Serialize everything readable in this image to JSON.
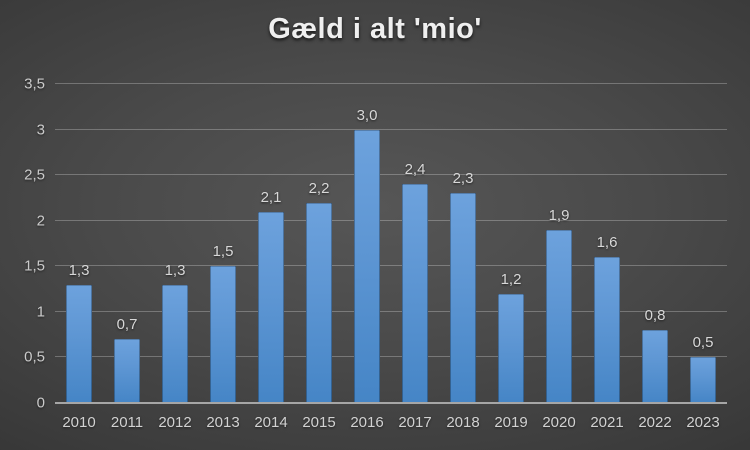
{
  "chart_data": {
    "type": "bar",
    "title": "Gæld i alt 'mio'",
    "categories": [
      "2010",
      "2011",
      "2012",
      "2013",
      "2014",
      "2015",
      "2016",
      "2017",
      "2018",
      "2019",
      "2020",
      "2021",
      "2022",
      "2023"
    ],
    "values": [
      1.3,
      0.7,
      1.3,
      1.5,
      2.1,
      2.2,
      3.0,
      2.4,
      2.3,
      1.2,
      1.9,
      1.6,
      0.8,
      0.5
    ],
    "value_labels": [
      "1,3",
      "0,7",
      "1,3",
      "1,5",
      "2,1",
      "2,2",
      "3,0",
      "2,4",
      "2,3",
      "1,2",
      "1,9",
      "1,6",
      "0,8",
      "0,5"
    ],
    "y_tick_labels": [
      "3,5",
      "3",
      "2,5",
      "2",
      "1,5",
      "1",
      "0,5",
      "0"
    ],
    "y_tick_values": [
      3.5,
      3,
      2.5,
      2,
      1.5,
      1,
      0.5,
      0
    ],
    "ylim": [
      0,
      3.5
    ],
    "xlabel": "",
    "ylabel": "",
    "grid": true,
    "legend": "none"
  },
  "colors": {
    "bar_top": "#6da2dd",
    "bar_bottom": "#4585c6",
    "background_center": "#565656",
    "background_edge": "#232323",
    "gridline": "rgba(255,255,255,0.26)",
    "axis_line": "#a6a6a6",
    "text": "#d8d8d8",
    "title_text": "#efefef"
  }
}
